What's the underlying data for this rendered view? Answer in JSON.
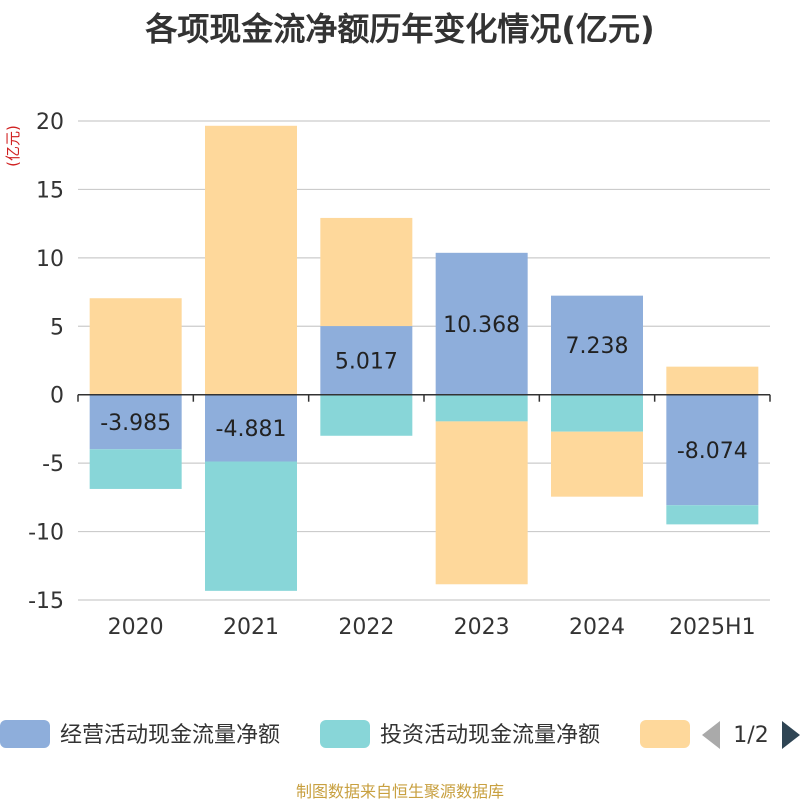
{
  "chart_data": {
    "type": "bar",
    "stacked": true,
    "title": "各项现金流净额历年变化情况(亿元)",
    "ylabel": "(亿元)",
    "categories": [
      "2020",
      "2021",
      "2022",
      "2023",
      "2024",
      "2025H1"
    ],
    "ylim": [
      -15,
      20
    ],
    "yticks": [
      -15,
      -10,
      -5,
      0,
      5,
      10,
      15,
      20
    ],
    "grid": true,
    "legend_position": "bottom",
    "series": [
      {
        "name": "经营活动现金流量净额",
        "color": "#8eaedb",
        "values": [
          -3.985,
          -4.881,
          5.017,
          10.368,
          7.238,
          -8.074
        ]
      },
      {
        "name": "投资活动现金流量净额",
        "color": "#88d6d8",
        "values": [
          -2.9,
          -9.45,
          -3.0,
          -1.95,
          -2.7,
          -1.4
        ]
      },
      {
        "name": "",
        "color": "#fed89b",
        "values": [
          7.05,
          19.65,
          7.9,
          -11.9,
          -4.75,
          2.05
        ]
      }
    ],
    "data_labels": [
      {
        "category": "2020",
        "text": "-3.985"
      },
      {
        "category": "2021",
        "text": "-4.881"
      },
      {
        "category": "2022",
        "text": "5.017"
      },
      {
        "category": "2023",
        "text": "10.368"
      },
      {
        "category": "2024",
        "text": "7.238"
      },
      {
        "category": "2025H1",
        "text": "-8.074"
      }
    ]
  },
  "legend_pager": {
    "text": "1/2"
  },
  "source": "制图数据来自恒生聚源数据库"
}
